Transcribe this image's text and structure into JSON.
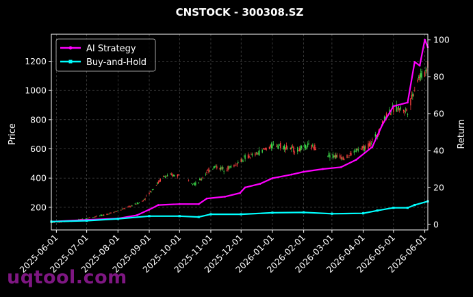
{
  "chart_data": {
    "type": "line",
    "title": "CNSTOCK - 300308.SZ",
    "ylabel_left": "Price",
    "ylabel_right": "Return",
    "x_ticks": [
      "2025-06-01",
      "2025-07-01",
      "2025-08-01",
      "2025-09-01",
      "2025-10-01",
      "2025-11-01",
      "2025-12-01",
      "2026-01-01",
      "2026-02-01",
      "2026-03-01",
      "2026-04-01",
      "2026-05-01",
      "2026-06-01"
    ],
    "x_range": [
      "2025-05-27",
      "2026-06-04"
    ],
    "ylim_left": [
      45,
      1385
    ],
    "yticks_left": [
      200,
      400,
      600,
      800,
      1000,
      1200
    ],
    "ylim_right": [
      -3,
      103
    ],
    "yticks_right": [
      0,
      20,
      40,
      60,
      80,
      100
    ],
    "grid": true,
    "legend_position": "top-left",
    "colors": {
      "background": "#000000",
      "up_candle": "#3cd84a",
      "down_candle": "#ff4040",
      "ai_strategy": "#ff00ff",
      "buy_and_hold": "#00ffff",
      "grid": "#5a5a5a",
      "text": "#ffffff"
    },
    "price_anchors": [
      {
        "x": "2025-05-27",
        "y": 95
      },
      {
        "x": "2025-06-15",
        "y": 105
      },
      {
        "x": "2025-07-01",
        "y": 125
      },
      {
        "x": "2025-07-20",
        "y": 150
      },
      {
        "x": "2025-08-05",
        "y": 185
      },
      {
        "x": "2025-08-25",
        "y": 240
      },
      {
        "x": "2025-09-05",
        "y": 330
      },
      {
        "x": "2025-09-15",
        "y": 410
      },
      {
        "x": "2025-09-25",
        "y": 420
      },
      {
        "x": "2025-10-05",
        "y": 420
      },
      {
        "x": "2025-10-12",
        "y": 380
      },
      {
        "x": "2025-10-18",
        "y": 355
      },
      {
        "x": "2025-10-28",
        "y": 440
      },
      {
        "x": "2025-11-05",
        "y": 480
      },
      {
        "x": "2025-11-15",
        "y": 460
      },
      {
        "x": "2025-11-25",
        "y": 490
      },
      {
        "x": "2025-12-05",
        "y": 540
      },
      {
        "x": "2025-12-15",
        "y": 560
      },
      {
        "x": "2025-12-25",
        "y": 600
      },
      {
        "x": "2026-01-05",
        "y": 630
      },
      {
        "x": "2026-01-15",
        "y": 610
      },
      {
        "x": "2026-01-25",
        "y": 590
      },
      {
        "x": "2026-02-05",
        "y": 620
      },
      {
        "x": "2026-02-15",
        "y": 610
      },
      {
        "x": "2026-02-25",
        "y": 560
      },
      {
        "x": "2026-03-05",
        "y": 550
      },
      {
        "x": "2026-03-15",
        "y": 540
      },
      {
        "x": "2026-03-25",
        "y": 590
      },
      {
        "x": "2026-04-05",
        "y": 610
      },
      {
        "x": "2026-04-15",
        "y": 700
      },
      {
        "x": "2026-04-25",
        "y": 850
      },
      {
        "x": "2026-05-05",
        "y": 880
      },
      {
        "x": "2026-05-15",
        "y": 860
      },
      {
        "x": "2026-05-25",
        "y": 1080
      },
      {
        "x": "2026-06-01",
        "y": 1120
      },
      {
        "x": "2026-06-04",
        "y": 1180
      }
    ],
    "series": [
      {
        "name": "AI Strategy",
        "axis": "right",
        "points": [
          {
            "x": "2025-05-27",
            "y": 1.5
          },
          {
            "x": "2025-07-01",
            "y": 2.5
          },
          {
            "x": "2025-08-01",
            "y": 3.2
          },
          {
            "x": "2025-08-20",
            "y": 5
          },
          {
            "x": "2025-09-01",
            "y": 8
          },
          {
            "x": "2025-09-10",
            "y": 10.5
          },
          {
            "x": "2025-10-01",
            "y": 11
          },
          {
            "x": "2025-10-20",
            "y": 11
          },
          {
            "x": "2025-10-28",
            "y": 14
          },
          {
            "x": "2025-11-15",
            "y": 15
          },
          {
            "x": "2025-11-30",
            "y": 17
          },
          {
            "x": "2025-12-05",
            "y": 20
          },
          {
            "x": "2025-12-20",
            "y": 22
          },
          {
            "x": "2026-01-01",
            "y": 25
          },
          {
            "x": "2026-01-20",
            "y": 27
          },
          {
            "x": "2026-02-01",
            "y": 28.5
          },
          {
            "x": "2026-02-20",
            "y": 30
          },
          {
            "x": "2026-03-10",
            "y": 31
          },
          {
            "x": "2026-03-25",
            "y": 35
          },
          {
            "x": "2026-04-10",
            "y": 42
          },
          {
            "x": "2026-04-20",
            "y": 54
          },
          {
            "x": "2026-05-01",
            "y": 64
          },
          {
            "x": "2026-05-15",
            "y": 66
          },
          {
            "x": "2026-05-22",
            "y": 88
          },
          {
            "x": "2026-05-27",
            "y": 86
          },
          {
            "x": "2026-06-01",
            "y": 100
          },
          {
            "x": "2026-06-04",
            "y": 96
          }
        ]
      },
      {
        "name": "Buy-and-Hold",
        "axis": "right",
        "points": [
          {
            "x": "2025-05-27",
            "y": 1.5
          },
          {
            "x": "2025-07-01",
            "y": 2
          },
          {
            "x": "2025-08-01",
            "y": 3
          },
          {
            "x": "2025-09-01",
            "y": 4.5
          },
          {
            "x": "2025-10-01",
            "y": 4.5
          },
          {
            "x": "2025-10-20",
            "y": 4
          },
          {
            "x": "2025-11-01",
            "y": 5.5
          },
          {
            "x": "2025-12-01",
            "y": 5.5
          },
          {
            "x": "2026-01-01",
            "y": 6.3
          },
          {
            "x": "2026-02-01",
            "y": 6.5
          },
          {
            "x": "2026-03-01",
            "y": 5.8
          },
          {
            "x": "2026-04-01",
            "y": 6
          },
          {
            "x": "2026-04-15",
            "y": 7.5
          },
          {
            "x": "2026-05-01",
            "y": 9
          },
          {
            "x": "2026-05-15",
            "y": 9
          },
          {
            "x": "2026-05-22",
            "y": 10.5
          },
          {
            "x": "2026-06-04",
            "y": 12.5
          }
        ]
      }
    ]
  },
  "watermark": "uqtool.com"
}
